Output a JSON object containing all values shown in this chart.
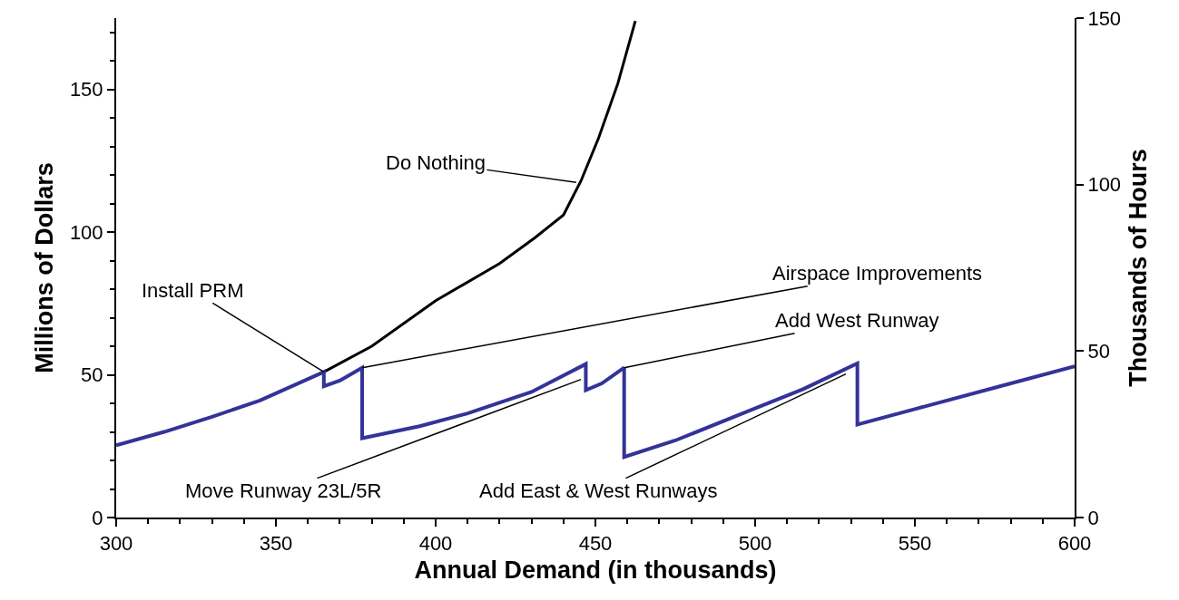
{
  "chart_data": {
    "type": "line",
    "xlabel": "Annual Demand (in thousands)",
    "ylabel": "Millions of Dollars",
    "y2label": "Thousands of Hours",
    "xlim": [
      300,
      600
    ],
    "xticks": [
      300,
      {
        "value": 310,
        "label": null
      },
      {
        "value": 320,
        "label": null
      },
      {
        "value": 330,
        "label": null
      },
      {
        "value": 340,
        "label": null
      },
      350,
      {
        "value": 360,
        "label": null
      },
      {
        "value": 370,
        "label": null
      },
      {
        "value": 380,
        "label": null
      },
      {
        "value": 390,
        "label": null
      },
      400,
      {
        "value": 410,
        "label": null
      },
      {
        "value": 420,
        "label": null
      },
      {
        "value": 430,
        "label": null
      },
      {
        "value": 440,
        "label": null
      },
      450,
      {
        "value": 460,
        "label": null
      },
      {
        "value": 470,
        "label": null
      },
      {
        "value": 480,
        "label": null
      },
      {
        "value": 490,
        "label": null
      },
      500,
      {
        "value": 510,
        "label": null
      },
      {
        "value": 520,
        "label": null
      },
      {
        "value": 530,
        "label": null
      },
      {
        "value": 540,
        "label": null
      },
      550,
      {
        "value": 560,
        "label": null
      },
      {
        "value": 570,
        "label": null
      },
      {
        "value": 580,
        "label": null
      },
      {
        "value": 590,
        "label": null
      },
      600
    ],
    "ylim": [
      0,
      175
    ],
    "yticks": [
      0,
      {
        "value": 10,
        "label": null
      },
      {
        "value": 20,
        "label": null
      },
      {
        "value": 30,
        "label": null
      },
      {
        "value": 40,
        "label": null
      },
      50,
      {
        "value": 60,
        "label": null
      },
      {
        "value": 70,
        "label": null
      },
      {
        "value": 80,
        "label": null
      },
      {
        "value": 90,
        "label": null
      },
      100,
      {
        "value": 110,
        "label": null
      },
      {
        "value": 120,
        "label": null
      },
      {
        "value": 130,
        "label": null
      },
      {
        "value": 140,
        "label": null
      },
      150,
      {
        "value": 160,
        "label": null
      },
      {
        "value": 170,
        "label": null
      }
    ],
    "y2lim": [
      0,
      150
    ],
    "y2ticks": [
      0,
      50,
      100,
      150
    ],
    "marker": "none",
    "line_style": "solid",
    "series": [
      {
        "color": "#000000",
        "x": [
          365,
          380,
          400,
          420,
          431,
          440,
          445.5,
          451,
          457,
          462.5
        ],
        "values": [
          51,
          60,
          76,
          89,
          98,
          106,
          118,
          133,
          152,
          174
        ]
      },
      {
        "color": "#333399",
        "x": [
          300,
          315,
          330,
          345,
          365,
          365,
          370,
          377,
          377,
          395,
          410,
          430,
          447,
          447,
          452,
          459,
          459,
          475,
          495,
          515,
          532,
          532,
          550,
          575,
          600
        ],
        "values": [
          25.3,
          30,
          35.3,
          41,
          51,
          46,
          48,
          52.5,
          27.8,
          32,
          36.5,
          44,
          53.8,
          44.6,
          47,
          52.5,
          21.2,
          27,
          36,
          45,
          54,
          32.6,
          38,
          45.5,
          53
        ]
      }
    ],
    "annotations": [
      {
        "text": "Do Nothing",
        "x": 444,
        "y": 117.4
      },
      {
        "text": "Install PRM",
        "x": 365,
        "y": 51
      },
      {
        "text": "Airspace Improvements",
        "x": 377,
        "y": 52.5
      },
      {
        "text": "Add West Runway",
        "x": 459,
        "y": 52.5
      },
      {
        "text": "Move Runway 23L/5R",
        "x": 445.5,
        "y": 48.4
      },
      {
        "text": "Add East & West Runways",
        "x": 528.4,
        "y": 50.3
      }
    ]
  }
}
